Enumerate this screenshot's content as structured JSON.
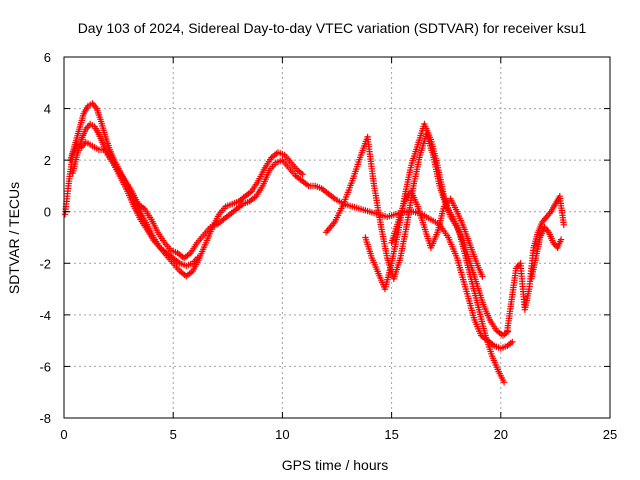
{
  "chart_data": {
    "type": "scatter",
    "title": "Day 103 of 2024, Sidereal Day-to-day VTEC variation (SDTVAR) for receiver ksu1",
    "xlabel": "GPS time / hours",
    "ylabel": "SDTVAR / TECUs",
    "xlim": [
      0,
      25
    ],
    "ylim": [
      -8,
      6
    ],
    "xticks": [
      0,
      5,
      10,
      15,
      20,
      25
    ],
    "yticks": [
      -8,
      -6,
      -4,
      -2,
      0,
      2,
      4,
      6
    ],
    "xtick_labels": [
      "0",
      "5",
      "10",
      "15",
      "20",
      "25"
    ],
    "ytick_labels": [
      "-8",
      "-6",
      "-4",
      "-2",
      "0",
      "2",
      "4",
      "6"
    ],
    "grid": true,
    "marker": "+",
    "series": [
      {
        "name": "SDTVAR",
        "color": "#ff0000",
        "segments": [
          {
            "x": [
              0.05,
              0.2,
              0.4,
              0.6,
              0.8,
              1.0,
              1.2,
              1.4,
              1.6,
              1.8,
              2.0,
              2.2,
              2.5,
              2.8,
              3.1,
              3.4,
              3.7,
              4.0,
              4.3,
              4.6,
              4.9,
              5.2,
              5.5,
              5.8,
              6.1,
              6.4,
              6.7,
              7.0,
              7.3,
              7.6,
              7.9,
              8.2,
              8.5,
              8.8,
              9.1,
              9.4,
              9.7,
              10.0,
              10.3,
              10.6,
              10.9,
              11.2,
              11.5,
              11.8,
              12.1,
              12.4,
              12.8,
              13.2,
              13.6,
              14.0,
              14.4,
              14.8,
              15.2,
              15.6,
              16.0,
              16.4,
              16.8,
              17.2,
              17.6,
              18.0,
              18.4,
              18.8,
              19.1,
              19.4,
              19.7,
              20.0,
              20.3,
              20.6
            ],
            "y": [
              -0.1,
              1.0,
              2.2,
              2.6,
              2.5,
              2.7,
              2.6,
              2.5,
              2.4,
              2.4,
              2.3,
              2.1,
              1.6,
              1.2,
              0.8,
              0.3,
              0.1,
              -0.3,
              -0.8,
              -1.2,
              -1.5,
              -1.6,
              -1.8,
              -1.6,
              -1.2,
              -0.9,
              -0.6,
              -0.5,
              -0.3,
              -0.1,
              0.1,
              0.3,
              0.4,
              0.6,
              1.0,
              1.6,
              1.9,
              2.0,
              1.7,
              1.4,
              1.2,
              1.0,
              1.0,
              0.9,
              0.7,
              0.5,
              0.3,
              0.2,
              0.1,
              0.0,
              -0.1,
              -0.2,
              -0.1,
              0.0,
              0.0,
              -0.1,
              -0.3,
              -0.5,
              -1.0,
              -1.8,
              -3.0,
              -4.2,
              -4.8,
              -5.0,
              -5.2,
              -5.3,
              -5.2,
              -5.0
            ]
          },
          {
            "x": [
              0.3,
              0.5,
              0.7,
              0.9,
              1.1,
              1.3,
              1.5,
              1.7,
              1.9,
              2.1,
              2.3,
              2.6,
              2.9,
              3.2,
              3.5,
              3.8,
              4.1,
              4.4,
              4.7,
              5.0,
              5.3,
              5.6,
              5.9,
              6.2,
              6.5,
              6.8,
              7.1,
              7.4,
              7.7,
              8.0,
              8.3,
              8.6,
              8.9,
              9.2,
              9.5,
              9.8,
              10.1,
              10.4,
              10.7,
              11.0
            ],
            "y": [
              2.0,
              2.6,
              3.2,
              3.8,
              4.1,
              4.2,
              4.0,
              3.5,
              2.9,
              2.4,
              2.0,
              1.5,
              1.0,
              0.5,
              0.0,
              -0.5,
              -1.0,
              -1.4,
              -1.7,
              -2.0,
              -2.3,
              -2.5,
              -2.3,
              -1.8,
              -1.2,
              -0.6,
              -0.1,
              0.2,
              0.3,
              0.4,
              0.6,
              0.8,
              1.2,
              1.7,
              2.1,
              2.3,
              2.2,
              1.9,
              1.6,
              1.4
            ]
          },
          {
            "x": [
              0.4,
              0.6,
              0.8,
              1.0,
              1.2,
              1.4,
              1.6,
              1.8,
              2.0,
              2.3,
              2.6,
              2.9,
              3.2,
              3.5,
              3.8,
              4.1,
              4.4,
              4.7,
              5.0,
              5.3,
              5.6,
              5.9,
              6.2
            ],
            "y": [
              1.5,
              2.2,
              2.8,
              3.2,
              3.4,
              3.3,
              3.0,
              2.6,
              2.2,
              1.8,
              1.3,
              0.8,
              0.2,
              -0.3,
              -0.7,
              -1.1,
              -1.4,
              -1.6,
              -1.8,
              -2.0,
              -2.1,
              -2.0,
              -1.7
            ]
          },
          {
            "x": [
              12.0,
              12.4,
              12.8,
              13.2,
              13.6,
              13.9,
              14.2,
              14.5,
              14.8,
              15.1,
              15.4,
              15.7,
              16.0,
              16.3,
              16.6,
              16.9,
              17.2,
              17.5,
              17.8,
              18.1,
              18.4,
              18.7,
              19.0,
              19.3,
              19.6,
              19.9,
              20.2
            ],
            "y": [
              -0.8,
              -0.4,
              0.3,
              1.2,
              2.2,
              2.9,
              1.0,
              -0.5,
              -1.8,
              -2.6,
              -1.8,
              -0.5,
              1.0,
              2.2,
              3.0,
              2.2,
              1.0,
              0.2,
              -0.2,
              -0.8,
              -1.8,
              -2.8,
              -3.8,
              -4.8,
              -5.6,
              -6.2,
              -6.7
            ]
          },
          {
            "x": [
              13.8,
              14.1,
              14.4,
              14.7,
              15.0,
              15.3,
              15.6,
              15.9,
              16.2,
              16.5,
              16.8,
              17.1,
              17.4,
              17.7,
              18.0,
              18.3,
              18.6,
              18.9,
              19.2,
              19.5,
              19.8,
              20.1,
              20.4
            ],
            "y": [
              -1.0,
              -1.8,
              -2.4,
              -3.0,
              -2.0,
              -0.8,
              0.6,
              1.8,
              2.6,
              3.4,
              2.8,
              1.8,
              0.6,
              -0.2,
              -0.6,
              -1.2,
              -2.0,
              -2.8,
              -3.6,
              -4.2,
              -4.6,
              -4.8,
              -4.6
            ]
          },
          {
            "x": [
              15.0,
              15.3,
              15.6,
              15.9,
              16.2,
              16.5,
              16.8,
              17.1,
              17.4,
              17.7,
              18.0,
              18.3,
              18.6,
              18.9,
              19.2
            ],
            "y": [
              -1.2,
              -0.4,
              0.4,
              0.8,
              0.2,
              -0.6,
              -1.4,
              -0.8,
              0.2,
              0.5,
              0.0,
              -0.6,
              -1.3,
              -2.0,
              -2.6
            ]
          },
          {
            "x": [
              20.3,
              20.5,
              20.7,
              20.9,
              21.1,
              21.3,
              21.5,
              21.7,
              21.9,
              22.1,
              22.3,
              22.5,
              22.7,
              22.9
            ],
            "y": [
              -4.6,
              -3.4,
              -2.2,
              -2.0,
              -3.8,
              -3.0,
              -1.4,
              -0.8,
              -0.4,
              -0.2,
              0.0,
              0.3,
              0.6,
              -0.6
            ]
          },
          {
            "x": [
              21.4,
              21.6,
              21.8,
              22.0,
              22.2,
              22.4,
              22.6,
              22.8
            ],
            "y": [
              -2.6,
              -1.8,
              -1.0,
              -0.6,
              -0.8,
              -1.2,
              -1.4,
              -1.0
            ]
          }
        ]
      }
    ]
  }
}
